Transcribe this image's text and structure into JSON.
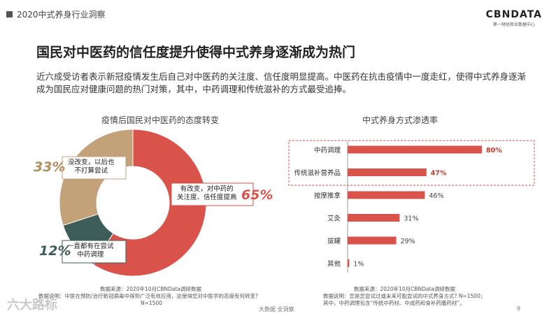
{
  "header": {
    "section_label": "2020中式养身行业洞察",
    "brand_name": "CBNDATA",
    "brand_sub": "第一财经商业数据中心"
  },
  "title": "国民对中医药的信任度提升使得中式养身逐渐成为热门",
  "description": "近六成受访者表示新冠疫情发生后自己对中医药的关注度、信任度明显提高。中医药在抗击疫情中一度走红，使得中式养身逐渐成为国民应对健康问题的热门对策，其中，中药调理和传统滋补的方式最受追捧。",
  "chart_data": [
    {
      "type": "pie",
      "title": "疫情后国民对中医药的态度转变",
      "labels": [
        "有改变，对中药的关注度、信任度提高",
        "一直都有在尝试中药调理",
        "没改变，以后也不打算尝试"
      ],
      "values": [
        65,
        12,
        33
      ],
      "value_labels": [
        "65%",
        "12%",
        "33%"
      ],
      "colors": [
        "#d9534a",
        "#3f5d58",
        "#c3a27a"
      ]
    },
    {
      "type": "bar",
      "title": "中式养身方式渗透率",
      "categories": [
        "中药调理",
        "传统滋补营养品",
        "按摩推拿",
        "艾灸",
        "拔罐",
        "其他"
      ],
      "values": [
        80,
        47,
        46,
        31,
        29,
        1
      ],
      "value_labels": [
        "80%",
        "47%",
        "46%",
        "31%",
        "29%",
        "1%"
      ],
      "highlighted": [
        "中药调理",
        "传统滋补营养品"
      ],
      "colors": {
        "bar": "#d9534a",
        "highlight_box": "#d9534a",
        "highlight_text": "#c0392b"
      }
    }
  ],
  "donut_labels": {
    "seg0_line1": "有改变，对中药的",
    "seg0_line2": "关注度、信任度提高",
    "seg1_line1": "一直都有在尝试",
    "seg1_line2": "中药调理",
    "seg2_line1": "没改变，以后也",
    "seg2_line2": "不打算尝试"
  },
  "footer": {
    "left_source": "数据来源：2020年10月CBNData调研数据",
    "left_note": "数据说明：中医在预防/治疗新冠病毒中得到广泛有效应用，这使得您对中医学的态度有何转变?",
    "left_n": "N=1500",
    "right_source": "数据来源：2020年10月CBNData调研数据",
    "right_note": "数据说明：您是您尝试过或未来可能尝试的中式养身方式? N=1500；",
    "right_note2": "其中，中药调理包含“传统中药材、中成药和食补药膳药材”。",
    "center": "大数据  全洞察",
    "page": "9",
    "watermark": "六大路标"
  }
}
